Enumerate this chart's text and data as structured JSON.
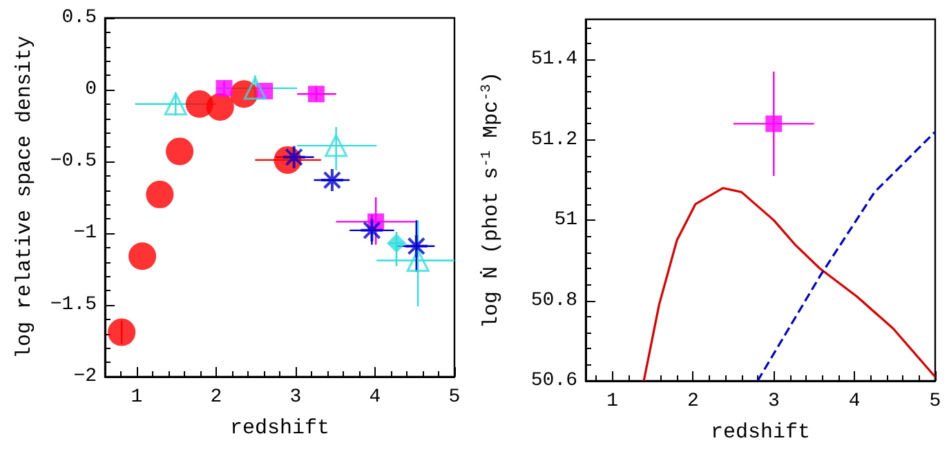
{
  "chart_data": [
    {
      "type": "scatter",
      "xlabel": "redshift",
      "ylabel": "log relative space density",
      "xlim": [
        0.6,
        5
      ],
      "ylim": [
        -2,
        0.5
      ],
      "xticks": [
        1,
        2,
        3,
        4,
        5
      ],
      "yticks": [
        -2,
        -1.5,
        -1,
        -0.5,
        0,
        0.5
      ],
      "grid": false,
      "series": [
        {
          "color": "#ff0000",
          "marker": "circle",
          "x": [
            0.81,
            1.07,
            1.29,
            1.54,
            1.79,
            2.05,
            2.35,
            2.9
          ],
          "values": [
            -1.69,
            -1.16,
            -0.73,
            -0.43,
            -0.1,
            -0.12,
            -0.03,
            -0.49
          ],
          "errors": [
            0.08,
            null,
            null,
            null,
            null,
            null,
            null,
            null
          ],
          "xerrors": [
            null,
            null,
            null,
            null,
            null,
            null,
            null,
            [
              2.49,
              3.32
            ]
          ]
        },
        {
          "color": "#ff00ff",
          "marker": "square",
          "x": [
            2.1,
            2.61,
            3.26,
            4.01
          ],
          "values": [
            0.01,
            -0.01,
            -0.03,
            -0.92
          ],
          "errors": [
            0.05,
            null,
            0.05,
            [
              -1.08,
              -0.75
            ]
          ],
          "xerrors": [
            null,
            null,
            [
              3.02,
              3.51
            ],
            [
              3.51,
              4.51
            ]
          ]
        },
        {
          "color": "#33dddd",
          "marker": "triangle",
          "x": [
            1.49,
            2.49,
            3.51,
            4.54
          ],
          "values": [
            -0.1,
            0.01,
            -0.39,
            -1.19
          ],
          "errors": [
            0.08,
            0.09,
            [
              -0.56,
              -0.26
            ],
            [
              -1.51,
              -0.91
            ]
          ],
          "xerrors": [
            [
              0.98,
              2.0
            ],
            [
              2.0,
              3.02
            ],
            [
              3.02,
              4.02
            ],
            [
              4.02,
              5.0
            ]
          ]
        },
        {
          "color": "#33dddd",
          "marker": "diamond",
          "x": [
            4.27
          ],
          "values": [
            -1.07
          ],
          "errors": [
            [
              -1.23,
              -0.99
            ]
          ],
          "xerrors": [
            0.1
          ]
        },
        {
          "color": "#0000cc",
          "marker": "cross",
          "x": [
            2.98,
            3.46,
            3.96,
            4.52
          ],
          "values": [
            -0.47,
            -0.63,
            -0.98,
            -1.09
          ],
          "errors": [
            null,
            null,
            [
              -1.08,
              -0.87
            ],
            [
              -1.27,
              -0.91
            ]
          ],
          "xerrors": [
            [
              2.75,
              3.23
            ],
            [
              3.23,
              3.68
            ],
            [
              3.68,
              4.24
            ],
            [
              4.28,
              4.75
            ]
          ]
        }
      ]
    },
    {
      "type": "line",
      "xlabel": "redshift",
      "ylabel": "log Ṅ (phot s$^{-1}$ Mpc$^{-3}$)",
      "xlim": [
        0.67,
        5
      ],
      "ylim": [
        50.6,
        51.5
      ],
      "xticks": [
        1,
        2,
        3,
        4,
        5
      ],
      "yticks": [
        50.6,
        50.8,
        51,
        51.2,
        51.4
      ],
      "grid": false,
      "series": [
        {
          "type": "scatter",
          "color": "#ff00ff",
          "marker": "square",
          "x": [
            3
          ],
          "values": [
            51.24
          ],
          "errors": [
            [
              51.11,
              51.37
            ]
          ],
          "xerrors": [
            0.5
          ]
        },
        {
          "color": "#dd0000",
          "marker": "none",
          "line_style": "solid",
          "x": [
            1.39,
            1.58,
            1.8,
            2.03,
            2.37,
            2.6,
            3.0,
            3.26,
            3.57,
            4.03,
            4.48,
            5.0
          ],
          "values": [
            50.6,
            50.79,
            50.95,
            51.04,
            51.08,
            51.07,
            51.0,
            50.94,
            50.88,
            50.81,
            50.73,
            50.61
          ]
        },
        {
          "color": "#0000cc",
          "marker": "none",
          "line_style": "dashed",
          "x": [
            2.8,
            3.57,
            4.25,
            5.0
          ],
          "values": [
            50.6,
            50.86,
            51.07,
            51.22
          ]
        }
      ]
    }
  ]
}
